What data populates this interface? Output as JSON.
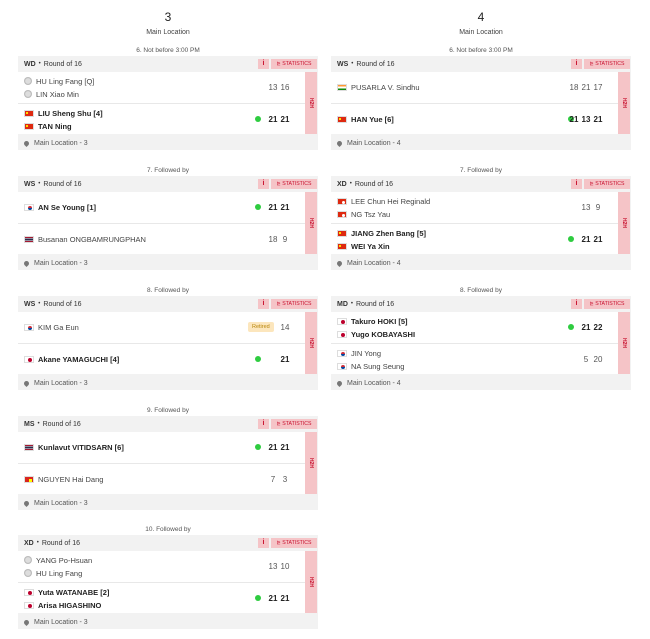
{
  "courts": [
    {
      "number": "3",
      "location": "Main Location",
      "matches": [
        {
          "slot_label": "6. Not before 3:00 PM",
          "event": "WD",
          "round": "Round of 16",
          "footer": "Main Location - 3",
          "info_label": "i",
          "stats_label": "⊵ STATISTICS",
          "h2h_label": "H2H",
          "teams": [
            {
              "winner": false,
              "players": [
                {
                  "name": "HU Ling Fang [Q]",
                  "flag": "tpe"
                },
                {
                  "name": "LIN Xiao Min",
                  "flag": "tpe"
                }
              ],
              "scores": [
                "13",
                "16"
              ]
            },
            {
              "winner": true,
              "players": [
                {
                  "name": "LIU Sheng Shu [4]",
                  "flag": "china"
                },
                {
                  "name": "TAN Ning",
                  "flag": "china"
                }
              ],
              "scores": [
                "21",
                "21"
              ]
            }
          ]
        },
        {
          "slot_label": "7. Followed by",
          "event": "WS",
          "round": "Round of 16",
          "footer": "Main Location - 3",
          "info_label": "i",
          "stats_label": "⊵ STATISTICS",
          "h2h_label": "H2H",
          "teams": [
            {
              "winner": true,
              "players": [
                {
                  "name": "AN Se Young [1]",
                  "flag": "korea"
                }
              ],
              "scores": [
                "21",
                "21"
              ]
            },
            {
              "winner": false,
              "players": [
                {
                  "name": "Busanan ONGBAMRUNGPHAN",
                  "flag": "thailand"
                }
              ],
              "scores": [
                "18",
                "9"
              ]
            }
          ]
        },
        {
          "slot_label": "8. Followed by",
          "event": "WS",
          "round": "Round of 16",
          "footer": "Main Location - 3",
          "info_label": "i",
          "stats_label": "⊵ STATISTICS",
          "h2h_label": "H2H",
          "teams": [
            {
              "winner": false,
              "status": "Retired",
              "players": [
                {
                  "name": "KIM Ga Eun",
                  "flag": "korea"
                }
              ],
              "scores": [
                "14"
              ]
            },
            {
              "winner": true,
              "players": [
                {
                  "name": "Akane YAMAGUCHI [4]",
                  "flag": "japan"
                }
              ],
              "scores": [
                "21"
              ]
            }
          ]
        },
        {
          "slot_label": "9. Followed by",
          "event": "MS",
          "round": "Round of 16",
          "footer": "Main Location - 3",
          "info_label": "i",
          "stats_label": "⊵ STATISTICS",
          "h2h_label": "H2H",
          "teams": [
            {
              "winner": true,
              "players": [
                {
                  "name": "Kunlavut VITIDSARN [6]",
                  "flag": "thailand"
                }
              ],
              "scores": [
                "21",
                "21"
              ]
            },
            {
              "winner": false,
              "players": [
                {
                  "name": "NGUYEN Hai Dang",
                  "flag": "vietnam"
                }
              ],
              "scores": [
                "7",
                "3"
              ]
            }
          ]
        },
        {
          "slot_label": "10. Followed by",
          "event": "XD",
          "round": "Round of 16",
          "footer": "Main Location - 3",
          "info_label": "i",
          "stats_label": "⊵ STATISTICS",
          "h2h_label": "H2H",
          "teams": [
            {
              "winner": false,
              "players": [
                {
                  "name": "YANG Po-Hsuan",
                  "flag": "tpe"
                },
                {
                  "name": "HU Ling Fang",
                  "flag": "tpe"
                }
              ],
              "scores": [
                "13",
                "10"
              ]
            },
            {
              "winner": true,
              "players": [
                {
                  "name": "Yuta WATANABE [2]",
                  "flag": "japan"
                },
                {
                  "name": "Arisa HIGASHINO",
                  "flag": "japan"
                }
              ],
              "scores": [
                "21",
                "21"
              ]
            }
          ]
        }
      ]
    },
    {
      "number": "4",
      "location": "Main Location",
      "matches": [
        {
          "slot_label": "6. Not before 3:00 PM",
          "event": "WS",
          "round": "Round of 16",
          "footer": "Main Location - 4",
          "info_label": "i",
          "stats_label": "⊵ STATISTICS",
          "h2h_label": "H2H",
          "teams": [
            {
              "winner": false,
              "players": [
                {
                  "name": "PUSARLA V. Sindhu",
                  "flag": "india"
                }
              ],
              "scores": [
                "18",
                "21",
                "17"
              ]
            },
            {
              "winner": true,
              "players": [
                {
                  "name": "HAN Yue [6]",
                  "flag": "china"
                }
              ],
              "scores": [
                "21",
                "13",
                "21"
              ]
            }
          ]
        },
        {
          "slot_label": "7. Followed by",
          "event": "XD",
          "round": "Round of 16",
          "footer": "Main Location - 4",
          "info_label": "i",
          "stats_label": "⊵ STATISTICS",
          "h2h_label": "H2H",
          "teams": [
            {
              "winner": false,
              "players": [
                {
                  "name": "LEE Chun Hei Reginald",
                  "flag": "hongkong"
                },
                {
                  "name": "NG Tsz Yau",
                  "flag": "hongkong"
                }
              ],
              "scores": [
                "13",
                "9"
              ]
            },
            {
              "winner": true,
              "players": [
                {
                  "name": "JIANG Zhen Bang [5]",
                  "flag": "china"
                },
                {
                  "name": "WEI Ya Xin",
                  "flag": "china"
                }
              ],
              "scores": [
                "21",
                "21"
              ]
            }
          ]
        },
        {
          "slot_label": "8. Followed by",
          "event": "MD",
          "round": "Round of 16",
          "footer": "Main Location - 4",
          "info_label": "i",
          "stats_label": "⊵ STATISTICS",
          "h2h_label": "H2H",
          "teams": [
            {
              "winner": true,
              "players": [
                {
                  "name": "Takuro HOKI [5]",
                  "flag": "japan"
                },
                {
                  "name": "Yugo KOBAYASHI",
                  "flag": "japan"
                }
              ],
              "scores": [
                "21",
                "22"
              ]
            },
            {
              "winner": false,
              "players": [
                {
                  "name": "JIN Yong",
                  "flag": "korea"
                },
                {
                  "name": "NA Sung Seung",
                  "flag": "korea"
                }
              ],
              "scores": [
                "5",
                "20"
              ]
            }
          ]
        }
      ]
    }
  ]
}
